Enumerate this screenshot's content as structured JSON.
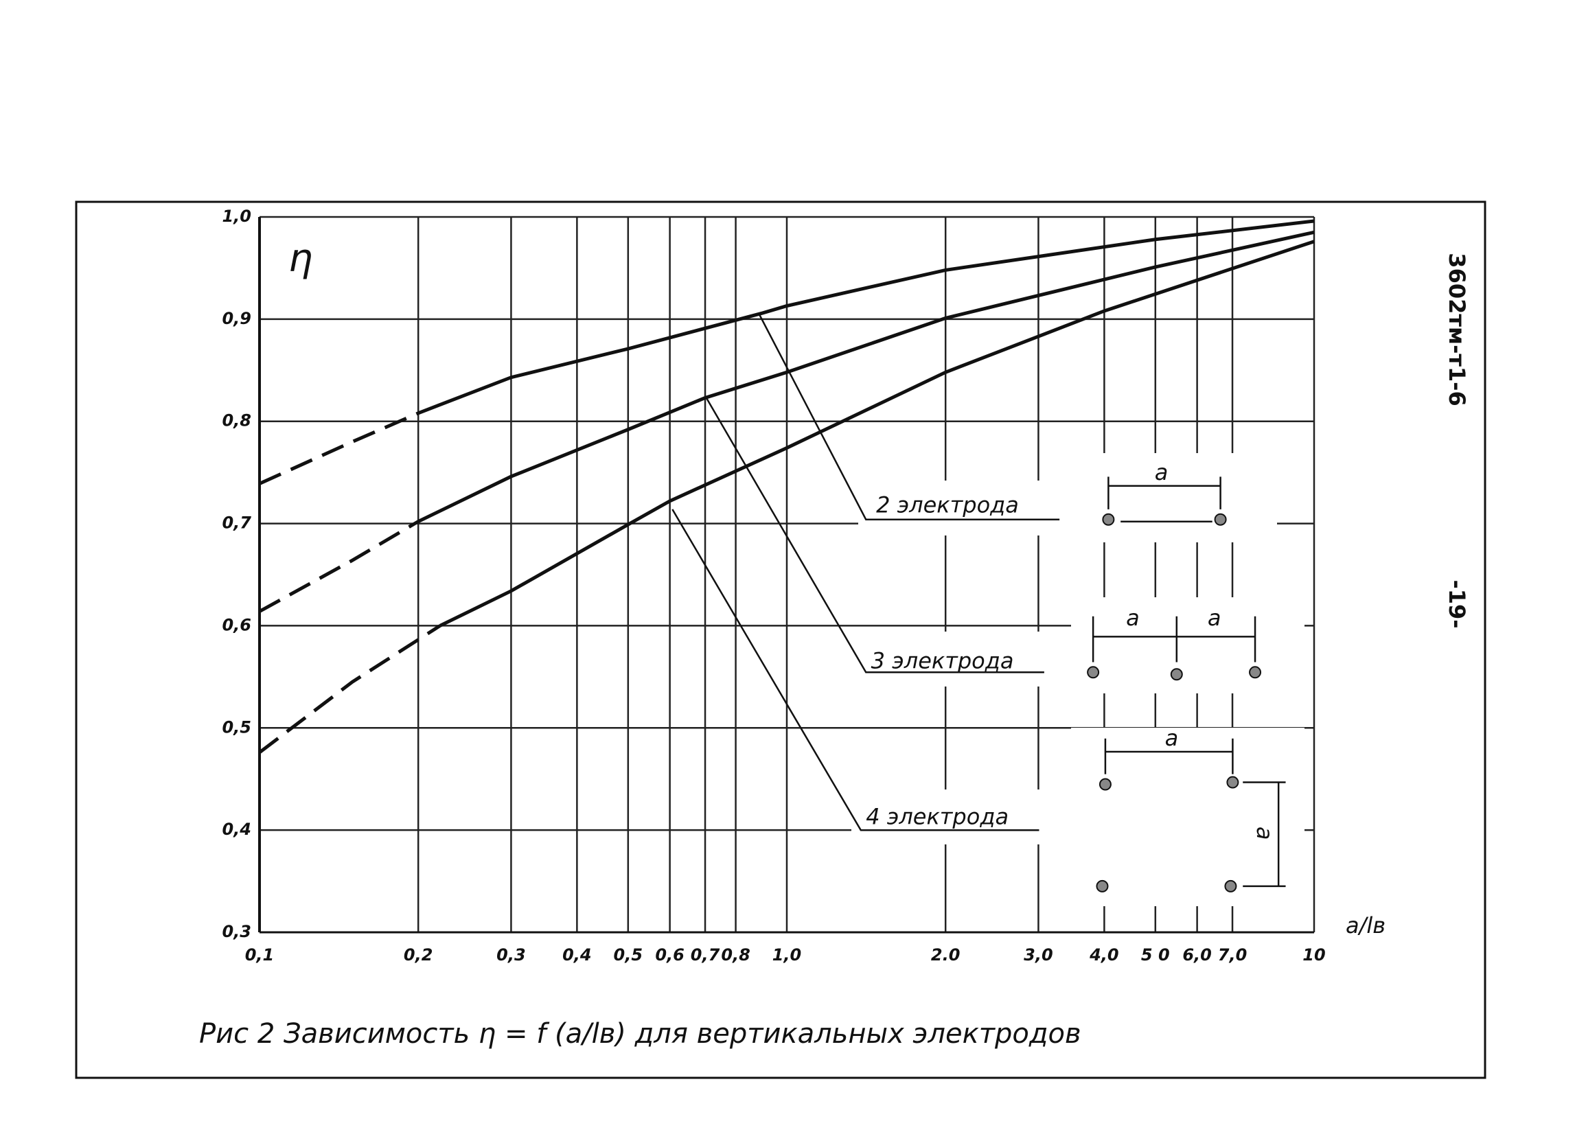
{
  "chart_data": {
    "type": "line",
    "caption": "Рис 2   Зависимость η = f (a/lв) для вертикальных электродов",
    "document_code": "3602тм-т1-6",
    "page_number": "-19-",
    "ylabel": "η",
    "xlabel": "a/lв",
    "xscale": "log",
    "grid": true,
    "xlim": [
      0.1,
      10
    ],
    "ylim": [
      0.3,
      1.0
    ],
    "xticks": [
      {
        "value": 0.1,
        "label": "0,1"
      },
      {
        "value": 0.2,
        "label": "0,2"
      },
      {
        "value": 0.3,
        "label": "0,3"
      },
      {
        "value": 0.4,
        "label": "0,4"
      },
      {
        "value": 0.5,
        "label": "0,5"
      },
      {
        "value": 0.6,
        "label": "0,6"
      },
      {
        "value": 0.7,
        "label": "0,7"
      },
      {
        "value": 0.8,
        "label": "0,8"
      },
      {
        "value": 1,
        "label": "1,0"
      },
      {
        "value": 2,
        "label": "2.0"
      },
      {
        "value": 3,
        "label": "3,0"
      },
      {
        "value": 4,
        "label": "4,0"
      },
      {
        "value": 5,
        "label": "5 0"
      },
      {
        "value": 6,
        "label": "6,0"
      },
      {
        "value": 7,
        "label": "7,0"
      },
      {
        "value": 10,
        "label": "10"
      }
    ],
    "yticks": [
      {
        "value": 1.0,
        "label": "1,0"
      },
      {
        "value": 0.9,
        "label": "0,9"
      },
      {
        "value": 0.8,
        "label": "0,8"
      },
      {
        "value": 0.7,
        "label": "0,7"
      },
      {
        "value": 0.6,
        "label": "0,6"
      },
      {
        "value": 0.5,
        "label": "0,5"
      },
      {
        "value": 0.4,
        "label": "0,4"
      },
      {
        "value": 0.3,
        "label": "0,3"
      }
    ],
    "series": [
      {
        "name": "2 электрода",
        "color": "#111111",
        "style": "solid",
        "x": [
          0.2,
          0.3,
          0.5,
          0.9,
          1,
          2,
          5,
          10
        ],
        "values": [
          0.808,
          0.843,
          0.871,
          0.906,
          0.913,
          0.948,
          0.978,
          0.996
        ]
      },
      {
        "name": "3 электрода",
        "color": "#111111",
        "style": "solid",
        "x": [
          0.2,
          0.3,
          0.5,
          0.7,
          1,
          2,
          5,
          10
        ],
        "values": [
          0.702,
          0.746,
          0.792,
          0.823,
          0.848,
          0.901,
          0.951,
          0.985
        ]
      },
      {
        "name": "4 электрода",
        "color": "#111111",
        "style": "solid",
        "x": [
          0.22,
          0.3,
          0.5,
          0.6,
          1,
          2,
          4,
          10
        ],
        "values": [
          0.6,
          0.634,
          0.699,
          0.722,
          0.774,
          0.848,
          0.908,
          0.976
        ]
      },
      {
        "color": "#111111",
        "style": "dashed",
        "x": [
          0.1,
          0.15,
          0.2
        ],
        "values": [
          0.739,
          0.78,
          0.808
        ]
      },
      {
        "color": "#111111",
        "style": "dashed",
        "x": [
          0.1,
          0.15,
          0.2
        ],
        "values": [
          0.614,
          0.664,
          0.702
        ]
      },
      {
        "color": "#111111",
        "style": "dashed",
        "x": [
          0.1,
          0.15,
          0.22
        ],
        "values": [
          0.476,
          0.545,
          0.6
        ]
      }
    ],
    "spacing_labels": [
      "a",
      "a",
      "a",
      "a",
      "a"
    ]
  }
}
